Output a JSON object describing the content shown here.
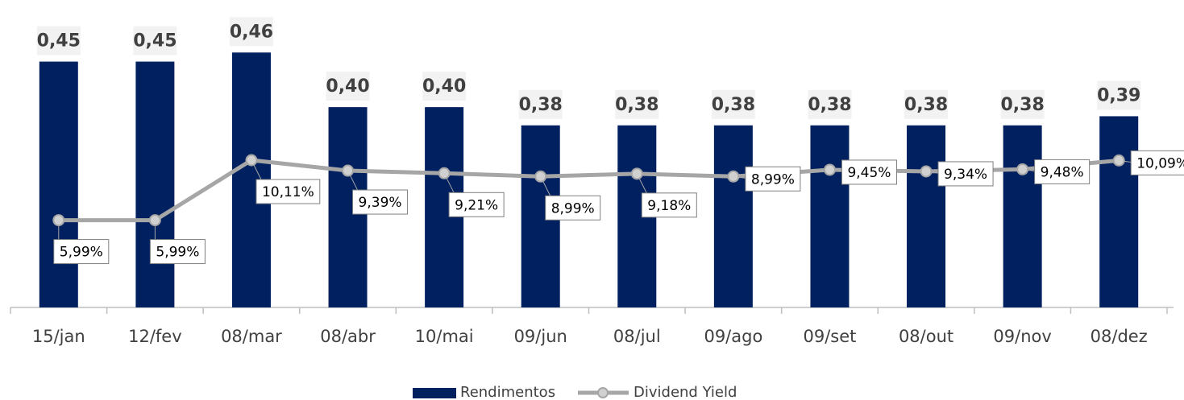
{
  "chart_data": {
    "type": "bar_line",
    "categories": [
      "15/jan",
      "12/fev",
      "08/mar",
      "08/abr",
      "10/mai",
      "09/jun",
      "08/jul",
      "09/ago",
      "09/set",
      "08/out",
      "09/nov",
      "08/dez"
    ],
    "series": [
      {
        "name": "Rendimentos",
        "type": "bar",
        "color": "#002060",
        "values": [
          0.45,
          0.45,
          0.46,
          0.4,
          0.4,
          0.38,
          0.38,
          0.38,
          0.38,
          0.38,
          0.38,
          0.39
        ],
        "value_labels": [
          "0,45",
          "0,45",
          "0,46",
          "0,40",
          "0,40",
          "0,38",
          "0,38",
          "0,38",
          "0,38",
          "0,38",
          "0,38",
          "0,39"
        ]
      },
      {
        "name": "Dividend Yield",
        "type": "line",
        "axis": "y2",
        "color": "#a6a6a6",
        "values": [
          5.99,
          5.99,
          10.11,
          9.39,
          9.21,
          8.99,
          9.18,
          8.99,
          9.45,
          9.34,
          9.48,
          10.09
        ],
        "value_labels": [
          "5,99%",
          "5,99%",
          "10,11%",
          "9,39%",
          "9,21%",
          "8,99%",
          "9,18%",
          "8,99%",
          "9,45%",
          "9,34%",
          "9,48%",
          "10,09%"
        ]
      }
    ],
    "ylim": [
      0.18,
      0.5
    ],
    "y2lim": [
      0,
      20
    ],
    "legend": "bottom"
  }
}
